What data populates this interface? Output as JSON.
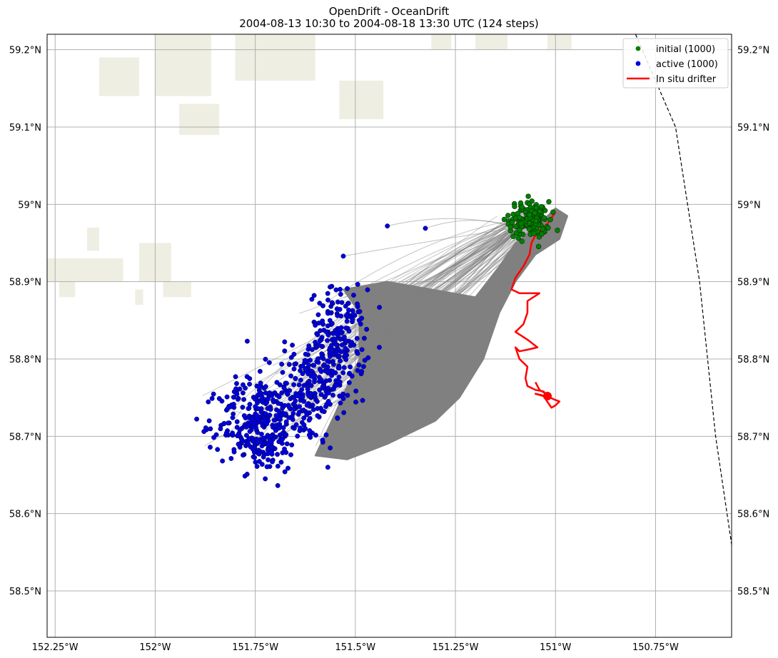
{
  "title": "OpenDrift - OceanDrift",
  "subtitle": "2004-08-13 10:30 to 2004-08-18 13:30 UTC (124 steps)",
  "chart_data": {
    "type": "scatter",
    "map": true,
    "x_axis": {
      "unit": "degrees_east",
      "lim": [
        -152.27,
        -150.56
      ],
      "ticks": [
        -152.25,
        -152.0,
        -151.75,
        -151.5,
        -151.25,
        -151.0,
        -150.75
      ],
      "tick_labels": [
        "152.25°W",
        "152°W",
        "151.75°W",
        "151.5°W",
        "151.25°W",
        "151°W",
        "150.75°W"
      ]
    },
    "y_axis": {
      "unit": "degrees_north",
      "lim": [
        58.44,
        59.22
      ],
      "ticks": [
        58.5,
        58.6,
        58.7,
        58.8,
        58.9,
        59.0,
        59.1,
        59.2
      ],
      "tick_labels": [
        "58.5°N",
        "58.6°N",
        "58.7°N",
        "58.8°N",
        "58.9°N",
        "59°N",
        "59.1°N",
        "59.2°N"
      ]
    },
    "grid": true,
    "legend_position": "top-right",
    "legend": [
      {
        "label": "initial (1000)",
        "color": "#008000",
        "marker": "dot"
      },
      {
        "label": "active (1000)",
        "color": "#0000dd",
        "marker": "dot"
      },
      {
        "label": "In situ drifter",
        "color": "#ff0000",
        "marker": "line"
      }
    ],
    "colors": {
      "trajectories": "#808080",
      "land": "#eeeee2",
      "grid": "#b0b0b0",
      "initial": "#008000",
      "active": "#0000dd",
      "drifter": "#ff0000"
    },
    "initial_cloud": {
      "count": 1000,
      "center": [
        -151.065,
        58.98
      ],
      "spread": [
        0.025,
        0.012
      ]
    },
    "active_cloud": {
      "count": 1000,
      "clusters": [
        {
          "center": [
            -151.545,
            58.82
          ],
          "spread": [
            0.035,
            0.035
          ],
          "share": 0.32
        },
        {
          "center": [
            -151.63,
            58.75
          ],
          "spread": [
            0.045,
            0.03
          ],
          "share": 0.25
        },
        {
          "center": [
            -151.74,
            58.715
          ],
          "spread": [
            0.05,
            0.03
          ],
          "share": 0.43
        }
      ],
      "outliers": [
        [
          -151.42,
          58.972
        ],
        [
          -151.325,
          58.969
        ],
        [
          -151.53,
          58.933
        ],
        [
          -151.865,
          58.72
        ],
        [
          -151.77,
          58.823
        ],
        [
          -151.725,
          58.645
        ]
      ]
    },
    "spread_polygon": [
      [
        -151.05,
        58.97
      ],
      [
        -151.0,
        58.995
      ],
      [
        -150.97,
        58.985
      ],
      [
        -150.99,
        58.955
      ],
      [
        -151.05,
        58.935
      ],
      [
        -151.1,
        58.9
      ],
      [
        -151.14,
        58.86
      ],
      [
        -151.18,
        58.8
      ],
      [
        -151.24,
        58.75
      ],
      [
        -151.3,
        58.72
      ],
      [
        -151.42,
        58.69
      ],
      [
        -151.52,
        58.67
      ],
      [
        -151.6,
        58.675
      ],
      [
        -151.55,
        58.73
      ],
      [
        -151.49,
        58.8
      ],
      [
        -151.49,
        58.86
      ],
      [
        -151.53,
        58.89
      ],
      [
        -151.42,
        58.9
      ],
      [
        -151.2,
        58.88
      ],
      [
        -151.14,
        58.92
      ],
      [
        -151.1,
        58.95
      ]
    ],
    "drifter_track": [
      [
        -151.0,
        58.99
      ],
      [
        -151.02,
        58.975
      ],
      [
        -151.05,
        58.96
      ],
      [
        -151.06,
        58.95
      ],
      [
        -151.065,
        58.935
      ],
      [
        -151.08,
        58.92
      ],
      [
        -151.1,
        58.905
      ],
      [
        -151.11,
        58.89
      ],
      [
        -151.09,
        58.885
      ],
      [
        -151.04,
        58.885
      ],
      [
        -151.07,
        58.875
      ],
      [
        -151.07,
        58.86
      ],
      [
        -151.08,
        58.845
      ],
      [
        -151.1,
        58.835
      ],
      [
        -151.07,
        58.825
      ],
      [
        -151.045,
        58.815
      ],
      [
        -151.07,
        58.812
      ],
      [
        -151.09,
        58.81
      ],
      [
        -151.1,
        58.815
      ],
      [
        -151.09,
        58.8
      ],
      [
        -151.07,
        58.79
      ],
      [
        -151.075,
        58.775
      ],
      [
        -151.07,
        58.765
      ],
      [
        -151.05,
        58.76
      ],
      [
        -151.03,
        58.758
      ],
      [
        -151.02,
        58.752
      ],
      [
        -151.005,
        58.748
      ],
      [
        -150.99,
        58.745
      ],
      [
        -151.0,
        58.74
      ],
      [
        -151.01,
        58.737
      ],
      [
        -151.03,
        58.752
      ],
      [
        -151.05,
        58.755
      ],
      [
        -151.025,
        58.752
      ],
      [
        -151.02,
        58.754
      ],
      [
        -151.04,
        58.76
      ],
      [
        -151.05,
        58.77
      ]
    ],
    "drifter_end": [
      -151.02,
      58.752
    ],
    "land_patches": [
      [
        [
          -152.14,
          59.19
        ],
        [
          -152.04,
          59.19
        ],
        [
          -152.04,
          59.14
        ],
        [
          -152.14,
          59.14
        ]
      ],
      [
        [
          -152.0,
          59.22
        ],
        [
          -151.86,
          59.22
        ],
        [
          -151.86,
          59.14
        ],
        [
          -152.0,
          59.14
        ]
      ],
      [
        [
          -151.8,
          59.22
        ],
        [
          -151.6,
          59.22
        ],
        [
          -151.6,
          59.16
        ],
        [
          -151.8,
          59.16
        ]
      ],
      [
        [
          -151.94,
          59.13
        ],
        [
          -151.84,
          59.13
        ],
        [
          -151.84,
          59.09
        ],
        [
          -151.94,
          59.09
        ]
      ],
      [
        [
          -151.54,
          59.16
        ],
        [
          -151.43,
          59.16
        ],
        [
          -151.43,
          59.11
        ],
        [
          -151.54,
          59.11
        ]
      ],
      [
        [
          -151.31,
          59.22
        ],
        [
          -151.26,
          59.22
        ],
        [
          -151.26,
          59.2
        ],
        [
          -151.31,
          59.2
        ]
      ],
      [
        [
          -151.2,
          59.22
        ],
        [
          -151.12,
          59.22
        ],
        [
          -151.12,
          59.2
        ],
        [
          -151.2,
          59.2
        ]
      ],
      [
        [
          -151.02,
          59.22
        ],
        [
          -150.96,
          59.22
        ],
        [
          -150.96,
          59.2
        ],
        [
          -151.02,
          59.2
        ]
      ],
      [
        [
          -152.27,
          58.93
        ],
        [
          -152.08,
          58.93
        ],
        [
          -152.08,
          58.9
        ],
        [
          -152.27,
          58.9
        ]
      ],
      [
        [
          -152.17,
          58.97
        ],
        [
          -152.14,
          58.97
        ],
        [
          -152.14,
          58.94
        ],
        [
          -152.17,
          58.94
        ]
      ],
      [
        [
          -152.24,
          58.9
        ],
        [
          -152.2,
          58.9
        ],
        [
          -152.2,
          58.88
        ],
        [
          -152.24,
          58.88
        ]
      ],
      [
        [
          -152.04,
          58.95
        ],
        [
          -151.96,
          58.95
        ],
        [
          -151.96,
          58.9
        ],
        [
          -152.04,
          58.9
        ]
      ],
      [
        [
          -151.98,
          58.9
        ],
        [
          -151.91,
          58.9
        ],
        [
          -151.91,
          58.88
        ],
        [
          -151.98,
          58.88
        ]
      ],
      [
        [
          -152.05,
          58.89
        ],
        [
          -152.03,
          58.89
        ],
        [
          -152.03,
          58.87
        ],
        [
          -152.05,
          58.87
        ]
      ]
    ],
    "projection_edge": [
      [
        -150.8,
        59.22
      ],
      [
        -150.7,
        59.1
      ],
      [
        -150.64,
        58.9
      ],
      [
        -150.6,
        58.7
      ],
      [
        -150.56,
        58.56
      ]
    ]
  }
}
